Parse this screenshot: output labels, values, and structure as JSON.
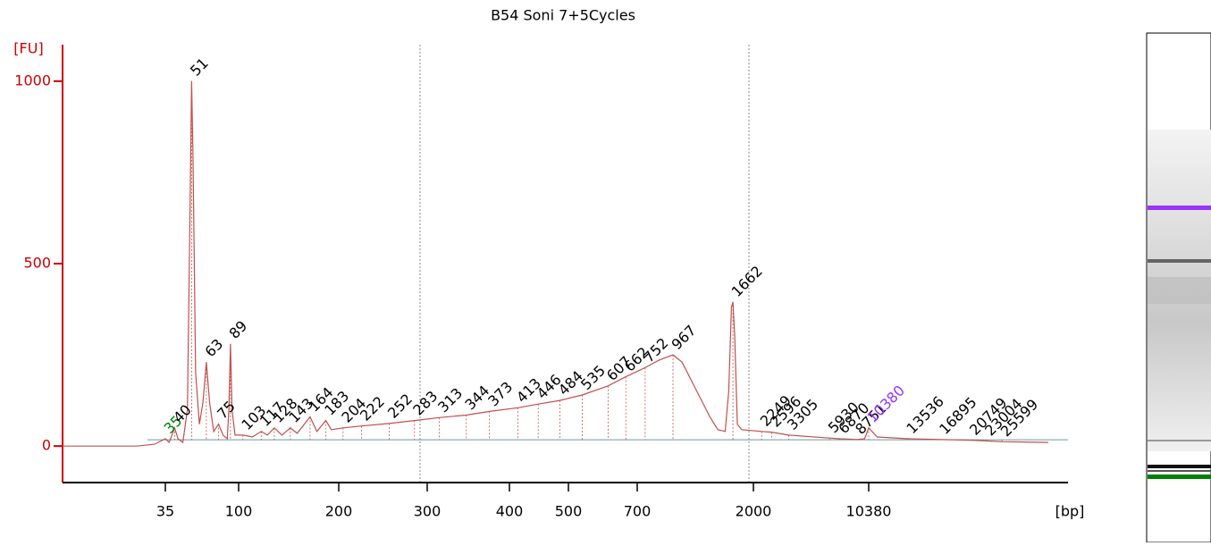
{
  "chart_data": {
    "type": "line",
    "title": "B54 Soni 7+5Cycles",
    "ylabel": "[FU]",
    "xlabel": "[bp]",
    "ylim": [
      -100,
      1100
    ],
    "yticks": [
      0,
      500,
      1000
    ],
    "xlim": [
      20,
      40000
    ],
    "xticks": [
      35,
      100,
      200,
      300,
      400,
      500,
      700,
      2000,
      10380
    ],
    "axis_color": "#cc0000",
    "x": [
      20,
      30,
      33,
      35,
      37,
      40,
      42,
      45,
      48,
      50,
      51,
      52,
      54,
      57,
      60,
      63,
      66,
      70,
      75,
      80,
      85,
      87,
      89,
      91,
      95,
      103,
      110,
      117,
      122,
      128,
      135,
      143,
      150,
      164,
      172,
      183,
      190,
      204,
      222,
      252,
      283,
      313,
      344,
      373,
      413,
      446,
      484,
      535,
      607,
      662,
      752,
      850,
      967,
      1050,
      1200,
      1350,
      1450,
      1550,
      1600,
      1640,
      1662,
      1690,
      1730,
      1800,
      2249,
      2596,
      3305,
      5930,
      6870,
      8751,
      9800,
      10380,
      11000,
      13536,
      16895,
      20749,
      23004,
      25599,
      35000
    ],
    "series": [
      {
        "color": "#c0504d",
        "values": [
          0,
          0,
          5,
          20,
          10,
          50,
          20,
          10,
          100,
          700,
          1000,
          800,
          200,
          60,
          120,
          230,
          120,
          40,
          60,
          30,
          20,
          100,
          280,
          100,
          30,
          30,
          25,
          40,
          30,
          50,
          30,
          50,
          35,
          80,
          40,
          70,
          45,
          50,
          55,
          62,
          70,
          78,
          85,
          95,
          105,
          115,
          125,
          140,
          165,
          190,
          215,
          235,
          250,
          230,
          150,
          80,
          45,
          40,
          150,
          380,
          395,
          300,
          60,
          45,
          40,
          38,
          30,
          22,
          20,
          18,
          20,
          50,
          25,
          20,
          18,
          16,
          14,
          12,
          10
        ]
      }
    ],
    "peaks": [
      {
        "x": 35,
        "y": 20,
        "color": "#008000"
      },
      {
        "x": 40,
        "y": 50
      },
      {
        "x": 51,
        "y": 1000
      },
      {
        "x": 63,
        "y": 230
      },
      {
        "x": 75,
        "y": 60
      },
      {
        "x": 89,
        "y": 280
      },
      {
        "x": 103,
        "y": 30
      },
      {
        "x": 117,
        "y": 40
      },
      {
        "x": 128,
        "y": 50
      },
      {
        "x": 143,
        "y": 50
      },
      {
        "x": 164,
        "y": 80
      },
      {
        "x": 183,
        "y": 70
      },
      {
        "x": 204,
        "y": 50
      },
      {
        "x": 222,
        "y": 55
      },
      {
        "x": 252,
        "y": 62
      },
      {
        "x": 283,
        "y": 70
      },
      {
        "x": 313,
        "y": 78
      },
      {
        "x": 344,
        "y": 85
      },
      {
        "x": 373,
        "y": 95
      },
      {
        "x": 413,
        "y": 105
      },
      {
        "x": 446,
        "y": 115
      },
      {
        "x": 484,
        "y": 125
      },
      {
        "x": 535,
        "y": 140
      },
      {
        "x": 607,
        "y": 165
      },
      {
        "x": 662,
        "y": 190
      },
      {
        "x": 752,
        "y": 215
      },
      {
        "x": 967,
        "y": 250
      },
      {
        "x": 1662,
        "y": 395
      },
      {
        "x": 2249,
        "y": 40
      },
      {
        "x": 2596,
        "y": 38
      },
      {
        "x": 3305,
        "y": 30
      },
      {
        "x": 5930,
        "y": 22
      },
      {
        "x": 6870,
        "y": 20
      },
      {
        "x": 8751,
        "y": 18
      },
      {
        "x": 10380,
        "y": 50,
        "color": "#9933ff"
      },
      {
        "x": 13536,
        "y": 20
      },
      {
        "x": 16895,
        "y": 18
      },
      {
        "x": 20749,
        "y": 16
      },
      {
        "x": 23004,
        "y": 14
      },
      {
        "x": 25599,
        "y": 12
      }
    ]
  }
}
